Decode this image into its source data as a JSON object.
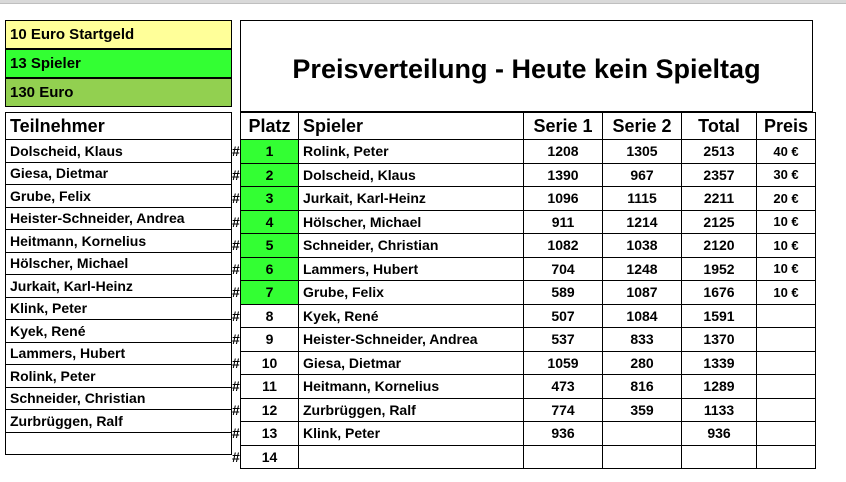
{
  "info": {
    "startgeld": "10 Euro Startgeld",
    "spieler": "13 Spieler",
    "euro": "130 Euro"
  },
  "title": "Preisverteilung - Heute kein Spieltag",
  "teilnehmer": {
    "header": "Teilnehmer",
    "names": [
      "Dolscheid, Klaus",
      "Giesa, Dietmar",
      "Grube, Felix",
      "Heister-Schneider, Andrea",
      "Heitmann, Kornelius",
      "Hölscher, Michael",
      "Jurkait, Karl-Heinz",
      "Klink, Peter",
      "Kyek, René",
      "Lammers, Hubert",
      "Rolink, Peter",
      "Schneider, Christian",
      "Zurbrüggen, Ralf",
      ""
    ]
  },
  "hash_symbol": "#",
  "ranking": {
    "headers": {
      "platz": "Platz",
      "spieler": "Spieler",
      "serie1": "Serie 1",
      "serie2": "Serie 2",
      "total": "Total",
      "preis": "Preis"
    },
    "rows": [
      {
        "platz": "1",
        "spieler": "Rolink, Peter",
        "serie1": "1208",
        "serie2": "1305",
        "total": "2513",
        "preis": "40 €"
      },
      {
        "platz": "2",
        "spieler": "Dolscheid, Klaus",
        "serie1": "1390",
        "serie2": "967",
        "total": "2357",
        "preis": "30 €"
      },
      {
        "platz": "3",
        "spieler": "Jurkait, Karl-Heinz",
        "serie1": "1096",
        "serie2": "1115",
        "total": "2211",
        "preis": "20 €"
      },
      {
        "platz": "4",
        "spieler": "Hölscher, Michael",
        "serie1": "911",
        "serie2": "1214",
        "total": "2125",
        "preis": "10 €"
      },
      {
        "platz": "5",
        "spieler": "Schneider, Christian",
        "serie1": "1082",
        "serie2": "1038",
        "total": "2120",
        "preis": "10 €"
      },
      {
        "platz": "6",
        "spieler": "Lammers, Hubert",
        "serie1": "704",
        "serie2": "1248",
        "total": "1952",
        "preis": "10 €"
      },
      {
        "platz": "7",
        "spieler": "Grube, Felix",
        "serie1": "589",
        "serie2": "1087",
        "total": "1676",
        "preis": "10 €"
      },
      {
        "platz": "8",
        "spieler": "Kyek, René",
        "serie1": "507",
        "serie2": "1084",
        "total": "1591",
        "preis": ""
      },
      {
        "platz": "9",
        "spieler": "Heister-Schneider, Andrea",
        "serie1": "537",
        "serie2": "833",
        "total": "1370",
        "preis": ""
      },
      {
        "platz": "10",
        "spieler": "Giesa, Dietmar",
        "serie1": "1059",
        "serie2": "280",
        "total": "1339",
        "preis": ""
      },
      {
        "platz": "11",
        "spieler": "Heitmann, Kornelius",
        "serie1": "473",
        "serie2": "816",
        "total": "1289",
        "preis": ""
      },
      {
        "platz": "12",
        "spieler": "Zurbrüggen, Ralf",
        "serie1": "774",
        "serie2": "359",
        "total": "1133",
        "preis": ""
      },
      {
        "platz": "13",
        "spieler": "Klink, Peter",
        "serie1": "936",
        "serie2": "",
        "total": "936",
        "preis": ""
      },
      {
        "platz": "14",
        "spieler": "",
        "serie1": "",
        "serie2": "",
        "total": "",
        "preis": ""
      }
    ],
    "highlight_color": "#33ff33",
    "highlighted_places": 7
  }
}
